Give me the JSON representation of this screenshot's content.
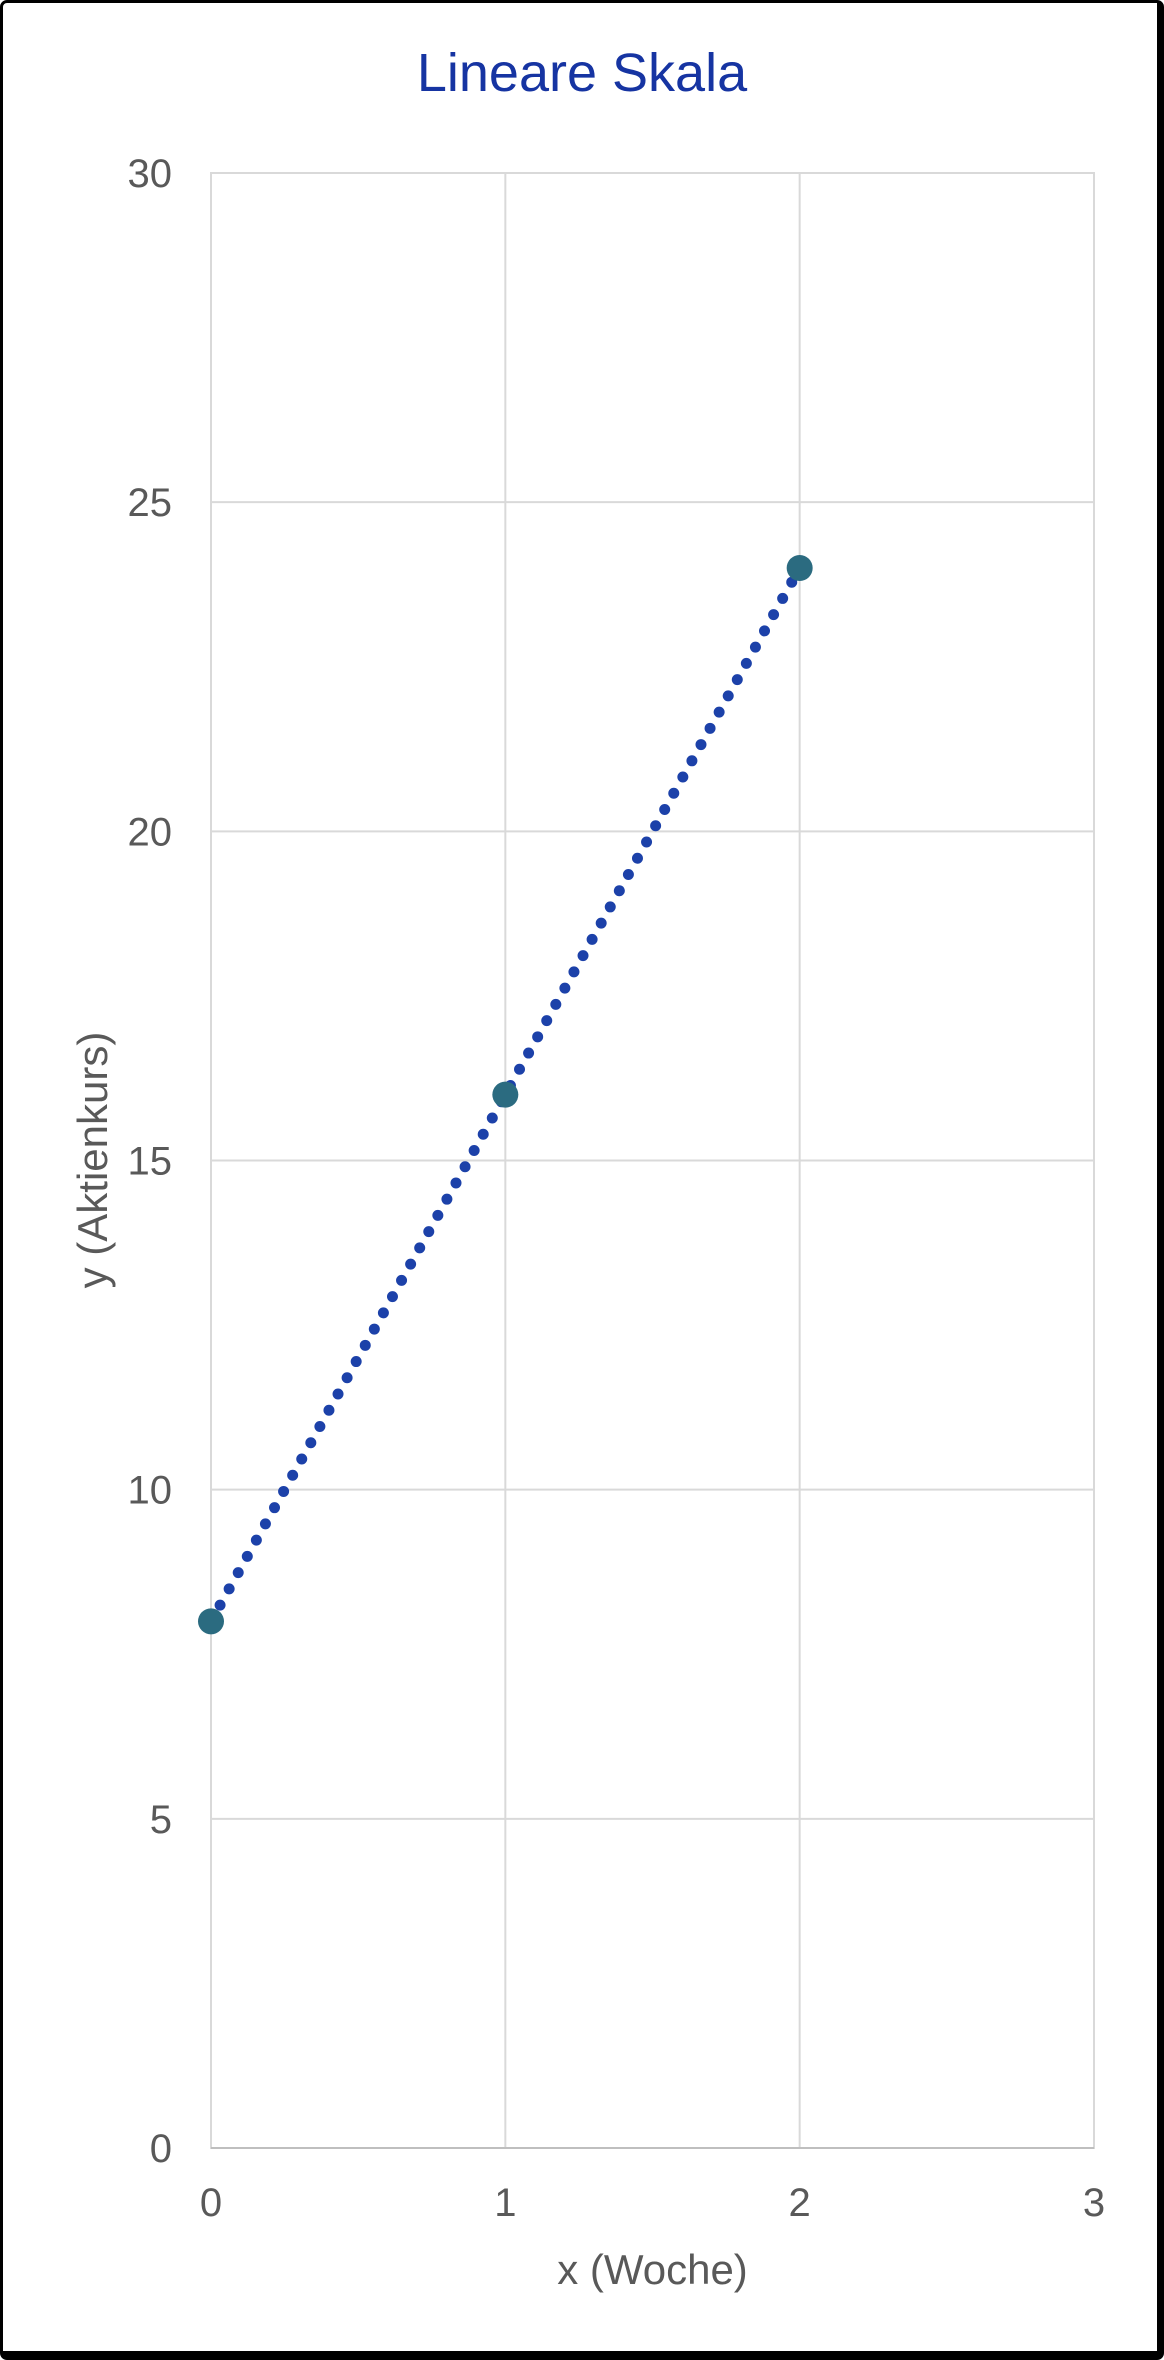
{
  "window": {
    "background": "#FFFFFF",
    "border_color": "#000000"
  },
  "chart_data": {
    "type": "scatter",
    "title": "Lineare Skala",
    "xlabel": "x (Woche)",
    "ylabel": "y (Aktienkurs)",
    "x": [
      0,
      1,
      2
    ],
    "y": [
      8,
      16,
      24
    ],
    "xlim": [
      0,
      3
    ],
    "ylim": [
      0,
      30
    ],
    "x_ticks": [
      0,
      1,
      2,
      3
    ],
    "y_ticks": [
      0,
      5,
      10,
      15,
      20,
      25,
      30
    ],
    "grid": true,
    "legend": false,
    "line_style": "dotted",
    "colors": {
      "title": "#1634A2",
      "line": "#1C41A9",
      "marker": "#2B6B80",
      "axis_text": "#595959",
      "gridline": "#D9D9D9",
      "axis_line": "#BFBFBF"
    }
  }
}
